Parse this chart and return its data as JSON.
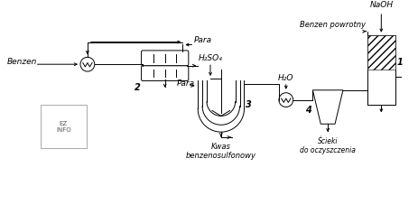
{
  "bg_color": "#ffffff",
  "line_color": "#000000",
  "labels": {
    "benzen": "Benzen",
    "para_top": "Para",
    "apparatus2": "2",
    "apparatus3": "3",
    "apparatus4": "4",
    "apparatus1": "1",
    "h2so4": "H₂SO₄",
    "h2o": "H₂O",
    "naoh": "NaOH",
    "benzen_powrotny": "Benzen powrotny",
    "kwas": "Kwas\nbenzenosulfonowy",
    "para_bottom": "Para",
    "scieki": "Ścieki\ndo oczyszczenia"
  },
  "watermark": "EZ\nINFO"
}
